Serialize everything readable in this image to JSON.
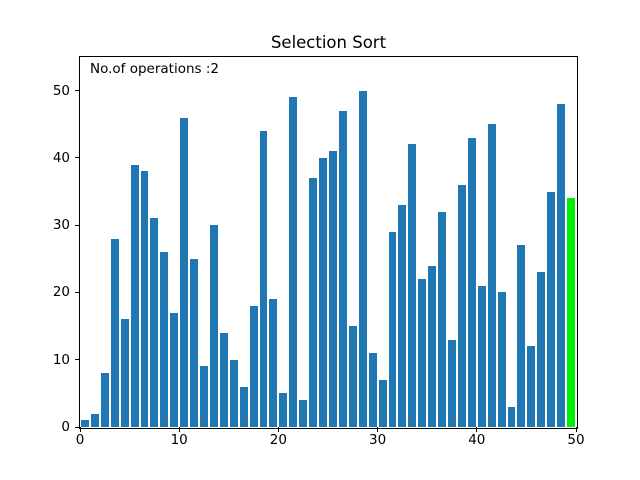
{
  "chart_data": {
    "type": "bar",
    "title": "Selection Sort",
    "annotation": "No.of operations :2",
    "values": [
      1,
      2,
      8,
      28,
      16,
      39,
      38,
      31,
      26,
      17,
      46,
      25,
      9,
      30,
      14,
      10,
      6,
      18,
      44,
      19,
      5,
      49,
      4,
      37,
      40,
      41,
      47,
      15,
      50,
      11,
      7,
      29,
      33,
      42,
      22,
      24,
      32,
      13,
      36,
      43,
      21,
      45,
      20,
      3,
      27,
      12,
      23,
      35,
      48,
      34
    ],
    "bar_positions_note": "50 bars centered at x = 0.5 .. 49.5, bar width 0.8 data units",
    "bar_width": 0.8,
    "bar_color": "#1f77b4",
    "highlight_index": 49,
    "highlight_color": "#00ee00",
    "xlim": [
      0,
      50
    ],
    "ylim": [
      0,
      55
    ],
    "xticks": [
      "0",
      "10",
      "20",
      "30",
      "40",
      "50"
    ],
    "xtick_values": [
      0,
      10,
      20,
      30,
      40,
      50
    ],
    "yticks": [
      "0",
      "10",
      "20",
      "30",
      "40",
      "50"
    ],
    "ytick_values": [
      0,
      10,
      20,
      30,
      40,
      50
    ],
    "xlabel": "",
    "ylabel": "",
    "grid": false,
    "legend": false,
    "text_color": "#000000",
    "background_color": "#ffffff"
  }
}
